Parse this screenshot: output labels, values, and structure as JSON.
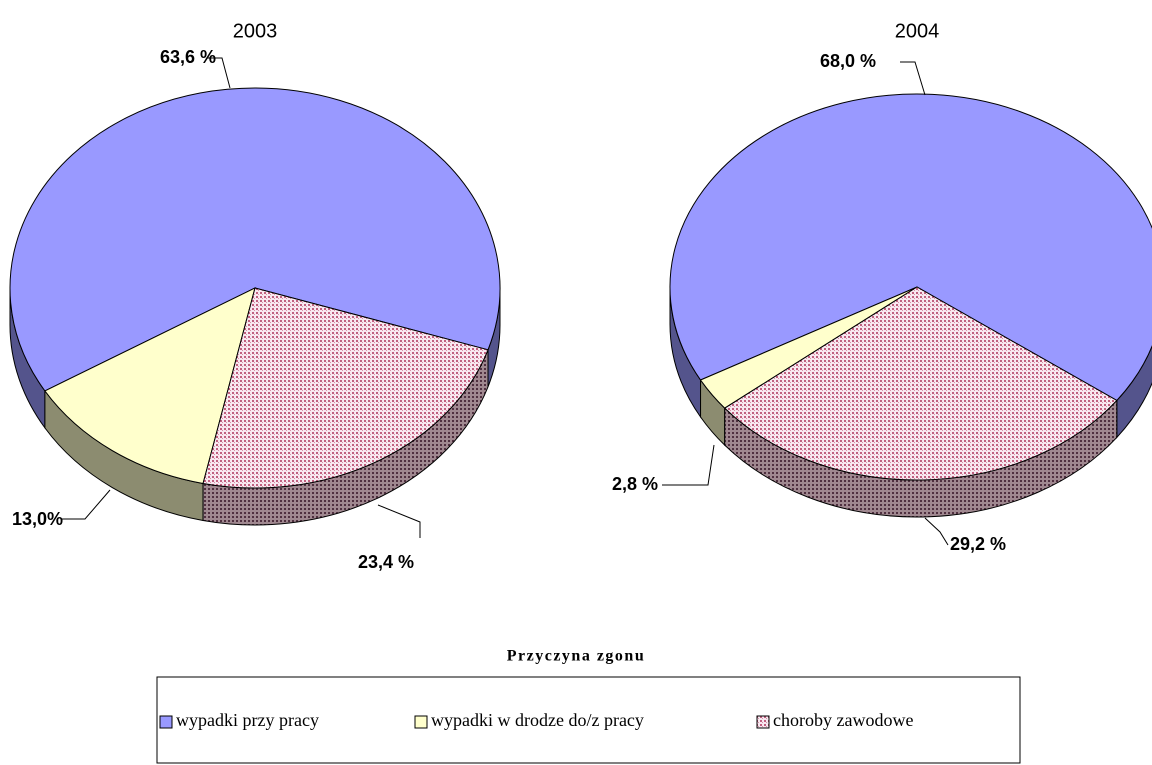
{
  "chart_data": [
    {
      "type": "pie",
      "title": "2003",
      "categories": [
        "wypadki przy pracy",
        "wypadki w drodze do/z pracy",
        "choroby zawodowe"
      ],
      "values": [
        63.6,
        13.0,
        23.4
      ],
      "value_labels": [
        "63,6 %",
        "13,0%",
        "23,4 %"
      ],
      "colors": [
        "#9999ff",
        "#ffffcc",
        "#f0c8d8"
      ],
      "three_d": true
    },
    {
      "type": "pie",
      "title": "2004",
      "categories": [
        "wypadki przy pracy",
        "wypadki w drodze do/z pracy",
        "choroby zawodowe"
      ],
      "values": [
        68.0,
        2.8,
        29.2
      ],
      "value_labels": [
        "68,0 %",
        "2,8 %",
        "29,2 %"
      ],
      "colors": [
        "#9999ff",
        "#ffffcc",
        "#f0c8d8"
      ],
      "three_d": true
    }
  ],
  "legend": {
    "title": "Przyczyna zgonu",
    "position": "bottom"
  }
}
